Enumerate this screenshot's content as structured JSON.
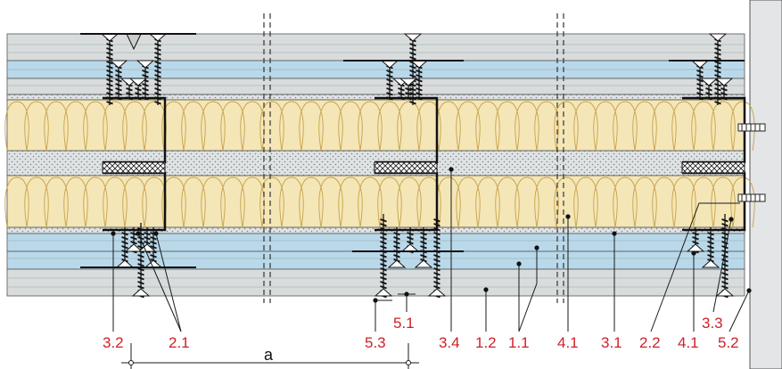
{
  "colors": {
    "board_gypsum": "#d9dcdd",
    "board_blue": "#b9d9ea",
    "insulation": "#f4e6b6",
    "insulation_stroke": "#c8a24a",
    "mortar_dots": "#dfe3e4",
    "wall": "#e4e5e6",
    "callout_text": "#d0202a",
    "line": "#1a1a1a"
  },
  "icons": {
    "screw": "screw-icon",
    "steel_profile": "c-profile-icon",
    "cut_line": "break-line-icon",
    "dimension_tick": "dimension-tick-icon"
  },
  "callouts": [
    {
      "id": "3.2",
      "label": "3.2"
    },
    {
      "id": "2.1",
      "label": "2.1"
    },
    {
      "id": "5.3",
      "label": "5.3"
    },
    {
      "id": "5.1",
      "label": "5.1"
    },
    {
      "id": "3.4",
      "label": "3.4"
    },
    {
      "id": "1.2",
      "label": "1.2"
    },
    {
      "id": "1.1",
      "label": "1.1"
    },
    {
      "id": "4.1a",
      "label": "4.1"
    },
    {
      "id": "3.1",
      "label": "3.1"
    },
    {
      "id": "2.2",
      "label": "2.2"
    },
    {
      "id": "4.1b",
      "label": "4.1"
    },
    {
      "id": "3.3",
      "label": "3.3"
    },
    {
      "id": "5.2",
      "label": "5.2"
    }
  ],
  "dimension": {
    "label": "a"
  }
}
